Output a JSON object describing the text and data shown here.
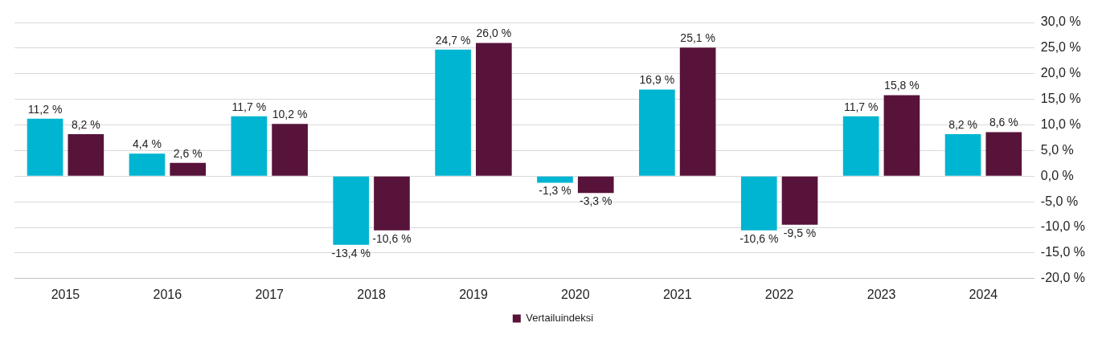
{
  "chart_data": {
    "type": "bar",
    "categories": [
      "2015",
      "2016",
      "2017",
      "2018",
      "2019",
      "2020",
      "2021",
      "2022",
      "2023",
      "2024"
    ],
    "series": [
      {
        "color": "#00b5d1",
        "values": [
          11.2,
          4.4,
          11.7,
          -13.4,
          24.7,
          -1.3,
          16.9,
          -10.6,
          11.7,
          8.2
        ],
        "value_labels": [
          "11,2 %",
          "4,4 %",
          "11,7 %",
          "-13,4 %",
          "24,7 %",
          "-1,3 %",
          "16,9 %",
          "-10,6 %",
          "11,7 %",
          "8,2 %"
        ]
      },
      {
        "name": "Vertailuindeksi",
        "color": "#58133a",
        "values": [
          8.2,
          2.6,
          10.2,
          -10.6,
          26.0,
          -3.3,
          25.1,
          -9.5,
          15.8,
          8.6
        ],
        "value_labels": [
          "8,2 %",
          "2,6 %",
          "10,2 %",
          "-10,6 %",
          "26,0 %",
          "-3,3 %",
          "25,1 %",
          "-9,5 %",
          "15,8 %",
          "8,6 %"
        ]
      }
    ],
    "ylim": [
      -20,
      30
    ],
    "yticks": [
      {
        "value": -20,
        "label": "-20,0 %"
      },
      {
        "value": -15,
        "label": "-15,0 %"
      },
      {
        "value": -10,
        "label": "-10,0 %"
      },
      {
        "value": -5,
        "label": "-5,0 %"
      },
      {
        "value": 0,
        "label": "0,0 %"
      },
      {
        "value": 5,
        "label": "5,0 %"
      },
      {
        "value": 10,
        "label": "10,0 %"
      },
      {
        "value": 15,
        "label": "15,0 %"
      },
      {
        "value": 20,
        "label": "20,0 %"
      },
      {
        "value": 25,
        "label": "25,0 %"
      },
      {
        "value": 30,
        "label": "30,0 %"
      }
    ],
    "grid": "y",
    "legend": "bottom"
  }
}
